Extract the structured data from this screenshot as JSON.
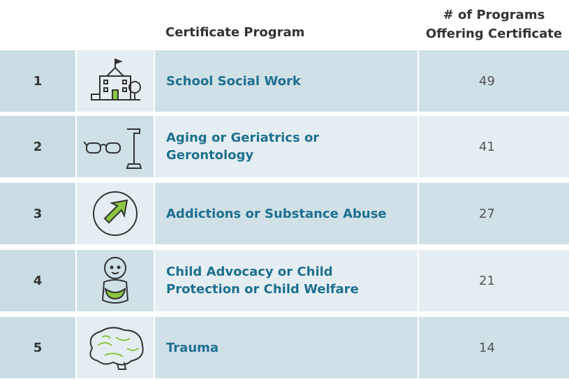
{
  "header": {
    "program": "Certificate Program",
    "count": [
      "# of Programs",
      "Offering Certificate"
    ]
  },
  "rows": [
    {
      "rank": 1,
      "program": [
        "School Social Work"
      ],
      "count": 49
    },
    {
      "rank": 2,
      "program": [
        "Aging or Geriatrics or",
        "Gerontology"
      ],
      "count": 41
    },
    {
      "rank": 3,
      "program": [
        "Addictions or Substance Abuse"
      ],
      "count": 27
    },
    {
      "rank": 4,
      "program": [
        "Child Advocacy or Child",
        "Protection or Child Welfare"
      ],
      "count": 21
    },
    {
      "rank": 5,
      "program": [
        "Trauma"
      ],
      "count": 14
    }
  ]
}
